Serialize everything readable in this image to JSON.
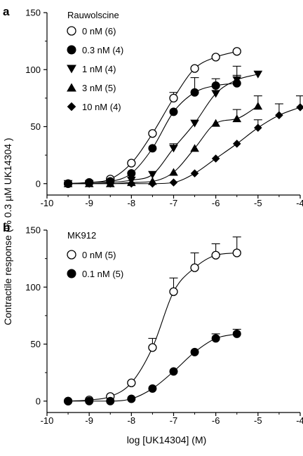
{
  "ylabel": "Contractile response (% 0.3 µM UK14304 )",
  "chart_data": [
    {
      "type": "scatter",
      "panel_label": "a",
      "legend_title": "Rauwolscine",
      "xlabel": "",
      "xlim": [
        -10,
        -4
      ],
      "ylim": [
        -10,
        150
      ],
      "xticks": [
        -10,
        -9,
        -8,
        -7,
        -6,
        -5,
        -4
      ],
      "xtick_labels": [
        "-10",
        "-9",
        "-8",
        "-7",
        "-6",
        "-5",
        "-4"
      ],
      "yticks": [
        0,
        50,
        100,
        150
      ],
      "ytick_labels": [
        "0",
        "50",
        "100",
        "150"
      ],
      "series": [
        {
          "name": "0 nM (6)",
          "marker": "circle-open",
          "x": [
            -9.5,
            -9,
            -8.5,
            -8,
            -7.5,
            -7,
            -6.5,
            -6,
            -5.5
          ],
          "y": [
            0,
            1,
            4,
            18,
            44,
            75,
            101,
            111,
            116
          ],
          "err": [
            0,
            0,
            0,
            0,
            0,
            5,
            0,
            0,
            0
          ]
        },
        {
          "name": "0.3 nM (4)",
          "marker": "circle-filled",
          "x": [
            -9.5,
            -9,
            -8.5,
            -8,
            -7.5,
            -7,
            -6.5,
            -6,
            -5.5
          ],
          "y": [
            0,
            1,
            2,
            9,
            31,
            63,
            80,
            86,
            88
          ],
          "err": [
            0,
            0,
            0,
            0,
            0,
            0,
            13,
            6,
            7
          ]
        },
        {
          "name": "1 nM (4)",
          "marker": "triangle-down",
          "x": [
            -9.5,
            -9,
            -8.5,
            -8,
            -7.5,
            -7,
            -6.5,
            -6,
            -5.5,
            -5
          ],
          "y": [
            0,
            0,
            1,
            3,
            8,
            31,
            53,
            79,
            91,
            96
          ],
          "err": [
            0,
            0,
            0,
            0,
            0,
            4,
            0,
            6,
            12,
            0
          ]
        },
        {
          "name": "3 nM (5)",
          "marker": "triangle-up",
          "x": [
            -9.5,
            -9,
            -8.5,
            -8,
            -7.5,
            -7,
            -6.5,
            -6,
            -5.5,
            -5
          ],
          "y": [
            0,
            0,
            0,
            1,
            2,
            10,
            31,
            53,
            57,
            68
          ],
          "err": [
            0,
            0,
            0,
            0,
            0,
            0,
            0,
            0,
            8,
            9
          ]
        },
        {
          "name": "10 nM (4)",
          "marker": "diamond",
          "x": [
            -9.5,
            -9,
            -8.5,
            -8,
            -7.5,
            -7,
            -6.5,
            -6,
            -5.5,
            -5,
            -4.5,
            -4
          ],
          "y": [
            0,
            0,
            0,
            0,
            0,
            1,
            9,
            22,
            35,
            49,
            60,
            67
          ],
          "err": [
            0,
            0,
            0,
            0,
            0,
            0,
            0,
            0,
            0,
            7,
            10,
            10
          ]
        }
      ]
    },
    {
      "type": "scatter",
      "panel_label": "b",
      "legend_title": "MK912",
      "xlabel": "log [UK14304] (M)",
      "xlim": [
        -10,
        -4
      ],
      "ylim": [
        -10,
        150
      ],
      "xticks": [
        -10,
        -9,
        -8,
        -7,
        -6,
        -5,
        -4
      ],
      "xtick_labels": [
        "-10",
        "-9",
        "-8",
        "-7",
        "-6",
        "-5",
        "-4"
      ],
      "yticks": [
        0,
        50,
        100,
        150
      ],
      "ytick_labels": [
        "0",
        "50",
        "100",
        "150"
      ],
      "series": [
        {
          "name": "0 nM (5)",
          "marker": "circle-open",
          "x": [
            -9.5,
            -9,
            -8.5,
            -8,
            -7.5,
            -7,
            -6.5,
            -6,
            -5.5
          ],
          "y": [
            0,
            1,
            4,
            16,
            47,
            96,
            117,
            128,
            130
          ],
          "err": [
            0,
            0,
            0,
            0,
            8,
            12,
            13,
            10,
            14
          ]
        },
        {
          "name": "0.1 nM (5)",
          "marker": "circle-filled",
          "x": [
            -9.5,
            -9,
            -8.5,
            -8,
            -7.5,
            -7,
            -6.5,
            -6,
            -5.5
          ],
          "y": [
            0,
            0,
            0,
            2,
            11,
            26,
            43,
            55,
            59
          ],
          "err": [
            0,
            0,
            0,
            0,
            0,
            0,
            0,
            4,
            4
          ]
        }
      ]
    }
  ]
}
